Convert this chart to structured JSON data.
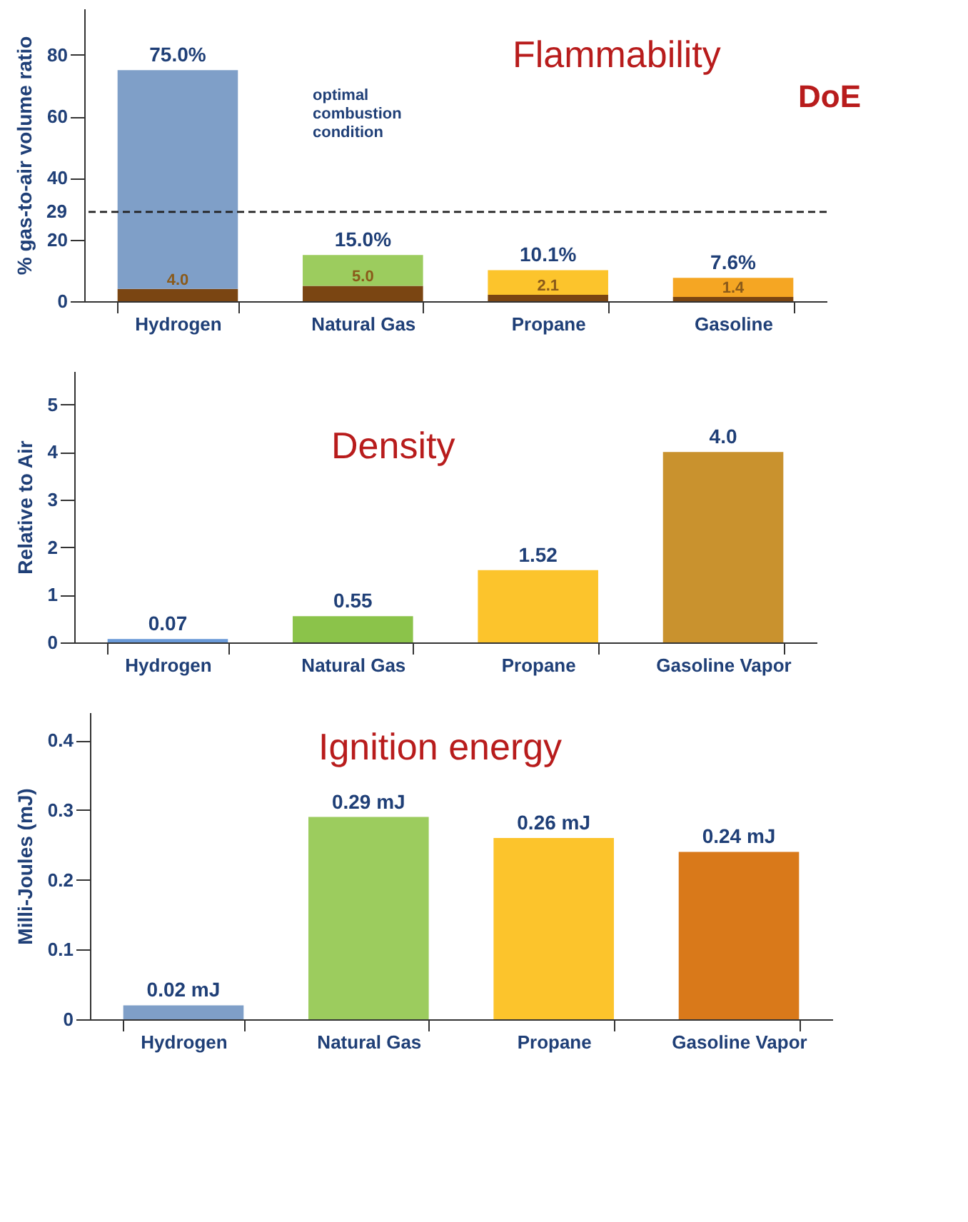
{
  "chart_data": [
    {
      "type": "bar",
      "title": "Flammability",
      "ylabel": "% gas-to-air volume ratio",
      "categories": [
        "Hydrogen",
        "Natural Gas",
        "Propane",
        "Gasoline"
      ],
      "stacked": true,
      "series": [
        {
          "colors": [
            "#7a4512",
            "#7a4512",
            "#7a4512",
            "#7a4512"
          ],
          "values": [
            4.0,
            5.0,
            2.1,
            1.4
          ],
          "value_labels": [
            "4.0",
            "5.0",
            "2.1",
            "1.4"
          ]
        },
        {
          "colors": [
            "#7f9fc8",
            "#9ccc5e",
            "#fcc42c",
            "#f5a623"
          ],
          "values": [
            71.0,
            10.0,
            8.0,
            6.2
          ]
        }
      ],
      "totals": [
        "75.0%",
        "15.0%",
        "10.1%",
        "7.6%"
      ],
      "ylim": [
        0,
        95
      ],
      "yticks": [
        0,
        20,
        40,
        60,
        80
      ],
      "ref_lines": [
        {
          "axis": "y",
          "value": 29,
          "label": "29",
          "line_style": "dashed"
        }
      ],
      "annotations": [
        "optimal\ncombustion\ncondition",
        "DoE"
      ]
    },
    {
      "type": "bar",
      "title": "Density",
      "ylabel": "Relative to Air",
      "categories": [
        "Hydrogen",
        "Natural Gas",
        "Propane",
        "Gasoline Vapor"
      ],
      "values": [
        0.07,
        0.55,
        1.52,
        4.0
      ],
      "colors": [
        "#6a9ad8",
        "#8bc34a",
        "#fcc42c",
        "#c9922e"
      ],
      "value_labels": [
        "0.07",
        "0.55",
        "1.52",
        "4.0"
      ],
      "ylim": [
        0,
        5.7
      ],
      "yticks": [
        0,
        1,
        2,
        3,
        4,
        5
      ]
    },
    {
      "type": "bar",
      "title": "Ignition energy",
      "ylabel": "Milli-Joules (mJ)",
      "categories": [
        "Hydrogen",
        "Natural Gas",
        "Propane",
        "Gasoline Vapor"
      ],
      "values": [
        0.02,
        0.29,
        0.26,
        0.24
      ],
      "colors": [
        "#7f9fc8",
        "#9ccc5e",
        "#fcc42c",
        "#d9791a"
      ],
      "value_labels": [
        "0.02 mJ",
        "0.29 mJ",
        "0.26 mJ",
        "0.24 mJ"
      ],
      "ylim": [
        0,
        0.44
      ],
      "yticks": [
        0,
        0.1,
        0.2,
        0.3,
        0.4
      ]
    }
  ]
}
